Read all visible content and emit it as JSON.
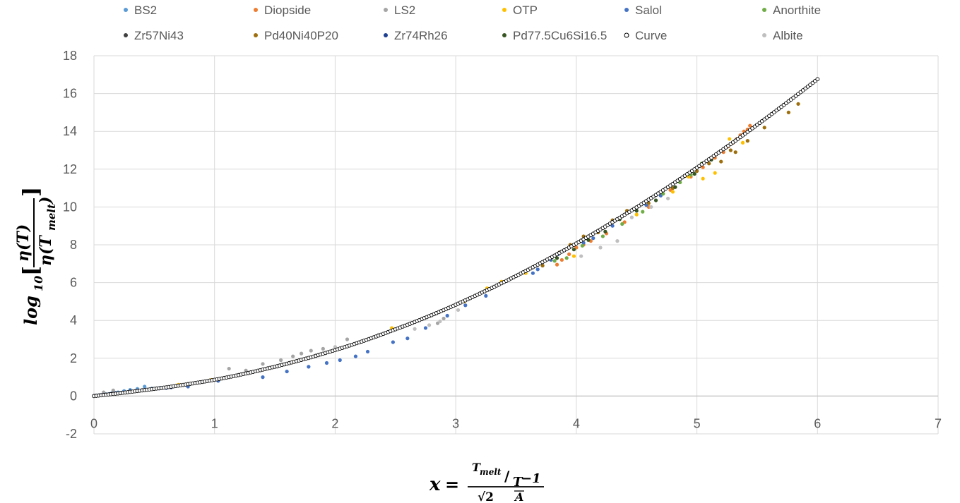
{
  "chart_data": {
    "type": "scatter",
    "xlim": [
      0,
      7
    ],
    "ylim": [
      -2,
      18
    ],
    "x_ticks": [
      "0",
      "1",
      "2",
      "3",
      "4",
      "5",
      "6",
      "7"
    ],
    "y_ticks": [
      "-2",
      "0",
      "2",
      "4",
      "6",
      "8",
      "10",
      "12",
      "14",
      "16",
      "18"
    ],
    "grid": "on",
    "legend_position": "top",
    "xlabel": {
      "lhs": "x",
      "equals": "=",
      "numerator_top": "T",
      "numerator_top_sub": "melt",
      "numerator_slash": "/",
      "numerator_T": "T",
      "numerator_rest": "−1",
      "denominator": "√2",
      "denominator_sub": "A"
    },
    "ylabel": {
      "log": "log",
      "log_sub": "10",
      "open": "[",
      "close": "]",
      "numerator": "η(T)",
      "denominator": "η(T",
      "denominator_sub": "melt",
      "denominator_close": ")"
    },
    "series": [
      {
        "name": "BS2",
        "color": "#5B9BD5",
        "marker": "dot",
        "x": [
          0.02,
          0.06,
          0.1,
          0.15,
          0.2,
          0.25,
          0.3,
          0.36,
          0.42,
          0.48,
          0.55
        ],
        "y": [
          0.03,
          0.06,
          0.1,
          0.16,
          0.2,
          0.27,
          0.33,
          0.38,
          0.5,
          0.4,
          0.44
        ]
      },
      {
        "name": "Diopside",
        "color": "#ED7D31",
        "marker": "dot",
        "x": [
          3.84,
          3.88,
          3.94,
          4.0,
          4.06,
          4.12,
          4.25,
          4.4,
          4.6,
          4.78,
          4.95,
          5.05,
          5.15,
          5.22,
          5.26,
          5.3,
          5.33,
          5.36,
          5.39,
          5.42,
          5.44
        ],
        "y": [
          6.95,
          7.2,
          7.5,
          7.85,
          8.0,
          8.2,
          8.6,
          9.2,
          10.0,
          10.9,
          11.6,
          12.1,
          12.6,
          12.9,
          13.2,
          13.4,
          13.6,
          13.8,
          14.0,
          14.1,
          14.3
        ]
      },
      {
        "name": "LS2",
        "color": "#A5A5A5",
        "marker": "dot",
        "x": [
          0.08,
          0.16,
          0.25,
          1.12,
          1.26,
          1.4,
          1.55,
          1.65,
          1.72,
          1.8,
          1.9,
          2.1,
          2.4,
          2.85,
          2.9
        ],
        "y": [
          0.2,
          0.3,
          0.2,
          1.45,
          1.35,
          1.7,
          1.9,
          2.1,
          2.25,
          2.4,
          2.5,
          3.0,
          3.3,
          3.85,
          4.1
        ]
      },
      {
        "name": "OTP",
        "color": "#FFC000",
        "marker": "dot",
        "x": [
          0.7,
          0.97,
          1.65,
          2.47,
          3.07,
          3.26,
          3.38,
          3.58,
          3.98,
          4.5,
          4.8,
          4.93,
          5.05,
          5.15,
          5.27,
          5.38
        ],
        "y": [
          0.6,
          0.85,
          1.8,
          3.6,
          5.0,
          5.7,
          6.05,
          6.5,
          7.4,
          9.6,
          10.8,
          11.6,
          11.5,
          11.8,
          13.6,
          13.4
        ]
      },
      {
        "name": "Salol",
        "color": "#4472C4",
        "marker": "dot",
        "x": [
          0.78,
          1.03,
          1.4,
          1.6,
          1.78,
          1.93,
          2.04,
          2.17,
          2.27,
          2.48,
          2.6,
          2.75,
          2.93,
          3.08,
          3.25,
          3.64,
          3.68,
          3.72,
          3.79,
          3.85,
          3.9,
          4.06,
          4.14,
          4.3,
          4.58,
          4.7
        ],
        "y": [
          0.5,
          0.8,
          1.0,
          1.3,
          1.55,
          1.75,
          1.9,
          2.1,
          2.35,
          2.85,
          3.05,
          3.6,
          4.25,
          4.8,
          5.3,
          6.5,
          6.7,
          6.9,
          7.2,
          7.5,
          7.7,
          8.1,
          8.35,
          9.0,
          10.1,
          10.6
        ]
      },
      {
        "name": "Anorthite",
        "color": "#70AD47",
        "marker": "dot",
        "x": [
          3.82,
          3.92,
          4.05,
          4.22,
          4.38,
          4.55,
          4.72,
          4.86,
          4.95,
          5.04
        ],
        "y": [
          7.15,
          7.3,
          7.95,
          8.45,
          9.1,
          9.75,
          10.7,
          11.3,
          11.7,
          12.3
        ]
      },
      {
        "name": "Zr57Ni43",
        "color": "#404040",
        "marker": "dot",
        "x": [
          0.01,
          0.05,
          0.1,
          0.15,
          0.22,
          0.3,
          0.4
        ],
        "y": [
          0.02,
          0.05,
          0.08,
          0.12,
          0.18,
          0.25,
          0.32
        ]
      },
      {
        "name": "Pd40Ni40P20",
        "color": "#9E6F0E",
        "marker": "dot",
        "x": [
          3.72,
          3.86,
          3.95,
          4.06,
          4.18,
          4.3,
          4.42,
          4.6,
          4.8,
          5.0,
          5.1,
          5.2,
          5.28,
          5.32,
          5.42,
          5.56,
          5.76,
          5.84
        ],
        "y": [
          6.9,
          7.6,
          8.0,
          8.45,
          8.65,
          9.3,
          9.8,
          10.2,
          11.0,
          11.9,
          12.3,
          12.4,
          13.0,
          12.9,
          13.5,
          14.2,
          15.0,
          15.45
        ]
      },
      {
        "name": "Zr74Rh26",
        "color": "#1F3F8F",
        "marker": "dot",
        "x": [
          0.0,
          0.04,
          0.08,
          0.13,
          0.18,
          0.24,
          0.3,
          0.36,
          0.42,
          0.48,
          0.54,
          0.6,
          0.64
        ],
        "y": [
          0.01,
          0.04,
          0.07,
          0.11,
          0.16,
          0.2,
          0.25,
          0.29,
          0.33,
          0.37,
          0.4,
          0.43,
          0.46
        ]
      },
      {
        "name": "Pd77.5Cu6Si16.5",
        "color": "#375623",
        "marker": "dot",
        "x": [
          3.84,
          3.98,
          4.1,
          4.24,
          4.36,
          4.5,
          4.66,
          4.82,
          4.98,
          5.12
        ],
        "y": [
          7.3,
          7.75,
          8.25,
          8.7,
          9.35,
          9.8,
          10.35,
          11.05,
          11.75,
          12.5
        ]
      },
      {
        "name": "Curve",
        "color": "#000000",
        "marker": "open-circle",
        "x": [
          0,
          0.1,
          0.2,
          0.3,
          0.4,
          0.5,
          0.6,
          0.7,
          0.8,
          0.9,
          1.0,
          1.1,
          1.2,
          1.3,
          1.4,
          1.5,
          1.6,
          1.7,
          1.8,
          1.9,
          2.0,
          2.1,
          2.2,
          2.3,
          2.4,
          2.5,
          2.6,
          2.7,
          2.8,
          2.9,
          3.0,
          3.1,
          3.2,
          3.3,
          3.4,
          3.5,
          3.6,
          3.7,
          3.8,
          3.9,
          4.0,
          4.1,
          4.2,
          4.3,
          4.4,
          4.5,
          4.6,
          4.7,
          4.8,
          4.9,
          5.0,
          5.1,
          5.2,
          5.3,
          5.4,
          5.5,
          5.6,
          5.7,
          5.8,
          5.9,
          6.0
        ],
        "y": [
          0.0,
          0.07,
          0.14,
          0.22,
          0.3,
          0.38,
          0.46,
          0.55,
          0.65,
          0.75,
          0.86,
          0.98,
          1.11,
          1.25,
          1.4,
          1.55,
          1.71,
          1.88,
          2.05,
          2.24,
          2.43,
          2.63,
          2.84,
          3.06,
          3.29,
          3.53,
          3.77,
          4.02,
          4.28,
          4.55,
          4.83,
          5.12,
          5.42,
          5.72,
          6.03,
          6.35,
          6.68,
          7.02,
          7.36,
          7.71,
          8.07,
          8.44,
          8.81,
          9.2,
          9.59,
          9.98,
          10.39,
          10.8,
          11.22,
          11.65,
          12.08,
          12.52,
          12.97,
          13.42,
          13.88,
          14.35,
          14.82,
          15.3,
          15.78,
          16.27,
          16.76
        ]
      },
      {
        "name": "Albite",
        "color": "#BFBFBF",
        "marker": "dot",
        "x": [
          1.28,
          1.52,
          1.84,
          2.0,
          2.2,
          2.36,
          2.66,
          2.78,
          2.87,
          3.02,
          4.04,
          4.2,
          4.34,
          4.46,
          4.62,
          4.76
        ],
        "y": [
          1.2,
          1.55,
          2.15,
          2.6,
          2.85,
          3.25,
          3.55,
          3.75,
          3.95,
          4.55,
          7.4,
          7.85,
          8.2,
          9.45,
          10.0,
          10.45
        ]
      }
    ]
  }
}
